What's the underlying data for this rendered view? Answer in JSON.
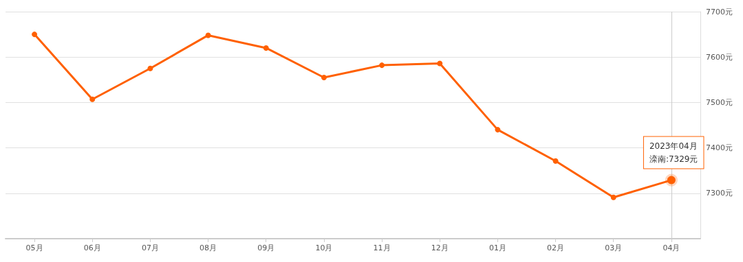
{
  "chart_data": {
    "type": "line",
    "categories": [
      "05月",
      "06月",
      "07月",
      "08月",
      "09月",
      "10月",
      "11月",
      "12月",
      "01月",
      "02月",
      "03月",
      "04月"
    ],
    "series": [
      {
        "color": "#ff6000",
        "values": [
          7650,
          7507,
          7575,
          7648,
          7620,
          7555,
          7582,
          7586,
          7440,
          7371,
          7291,
          7329
        ]
      }
    ],
    "ylim": [
      7200,
      7700
    ],
    "yticks": [
      {
        "value": 7200,
        "label": null
      },
      {
        "value": 7300,
        "label": "7300元"
      },
      {
        "value": 7400,
        "label": "7400元"
      },
      {
        "value": 7500,
        "label": "7500元"
      },
      {
        "value": 7600,
        "label": "7600元"
      },
      {
        "value": 7700,
        "label": "7700元"
      }
    ],
    "grid": "y",
    "marker": "circle",
    "line_style": "solid",
    "ref_lines": [
      {
        "axis": "x",
        "value": "04月",
        "color": "#cccccc"
      }
    ],
    "annotations": [
      "2023年04月",
      "滦南:7329元"
    ]
  }
}
